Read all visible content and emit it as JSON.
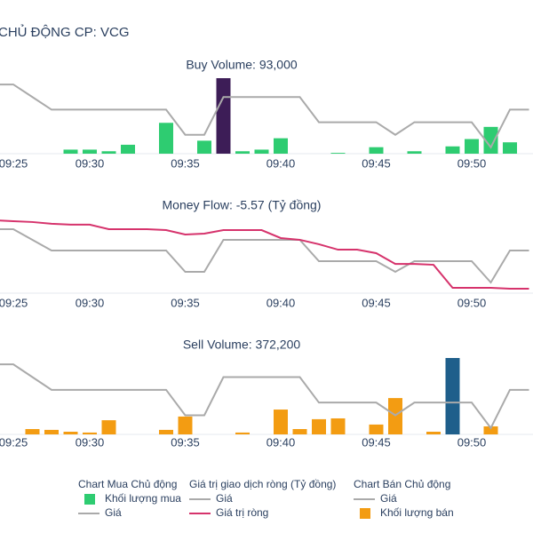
{
  "header": {
    "title": "CHỦ ĐỘNG CP: VCG"
  },
  "chart_data": [
    {
      "type": "bar",
      "title": "Buy Volume: 93,000",
      "legend_title": "Chart Mua Chủ động",
      "categories": [
        null,
        "09:25",
        null,
        null,
        null,
        "09:30",
        null,
        null,
        null,
        null,
        "09:35",
        null,
        null,
        null,
        null,
        "09:40",
        null,
        null,
        null,
        null,
        "09:45",
        null,
        null,
        null,
        null,
        "09:50",
        null,
        null,
        null
      ],
      "ylim": [
        0,
        93000
      ],
      "y2lim": [
        17.35,
        17.95
      ],
      "series": [
        {
          "name": "Khối lượng mua",
          "type": "bar",
          "color": "#2ecc71",
          "highlight_color": "#3d1d57",
          "values": [
            null,
            null,
            null,
            null,
            5000,
            5000,
            3000,
            11000,
            null,
            38000,
            null,
            16000,
            93000,
            3000,
            5000,
            19000,
            null,
            null,
            1000,
            null,
            8000,
            null,
            3000,
            null,
            9000,
            18000,
            33000,
            14000,
            null
          ]
        },
        {
          "name": "Giá",
          "type": "line",
          "axis": "y2",
          "color": "#aaaaaa",
          "values": [
            17.9,
            17.9,
            17.8,
            17.7,
            17.7,
            17.7,
            17.7,
            17.7,
            17.7,
            17.7,
            17.5,
            17.5,
            17.8,
            17.8,
            17.8,
            17.8,
            17.8,
            17.6,
            17.6,
            17.6,
            17.6,
            17.5,
            17.6,
            17.6,
            17.6,
            17.6,
            17.4,
            17.7,
            17.7
          ]
        }
      ]
    },
    {
      "type": "line",
      "title": "Money Flow: -5.57 (Tỷ đồng)",
      "legend_title": "Giá trị giao dịch ròng (Tỷ đồng)",
      "categories": [
        null,
        "09:25",
        null,
        null,
        null,
        "09:30",
        null,
        null,
        null,
        null,
        "09:35",
        null,
        null,
        null,
        null,
        "09:40",
        null,
        null,
        null,
        null,
        "09:45",
        null,
        null,
        null,
        null,
        "09:50",
        null,
        null,
        null
      ],
      "ylim": [
        -5.92,
        0.42
      ],
      "y2lim": [
        17.3,
        18.05
      ],
      "series": [
        {
          "name": "Giá",
          "type": "line",
          "axis": "y2",
          "color": "#aaaaaa",
          "values": [
            17.9,
            17.9,
            17.8,
            17.7,
            17.7,
            17.7,
            17.7,
            17.7,
            17.7,
            17.7,
            17.5,
            17.5,
            17.8,
            17.8,
            17.8,
            17.8,
            17.8,
            17.6,
            17.6,
            17.6,
            17.6,
            17.5,
            17.6,
            17.6,
            17.6,
            17.6,
            17.4,
            17.7,
            17.7
          ]
        },
        {
          "name": "Giá trị ròng",
          "type": "line",
          "color": "#d6336c",
          "values": [
            -0.14,
            -0.21,
            -0.28,
            -0.42,
            -0.49,
            -0.49,
            -0.85,
            -0.85,
            -0.85,
            -0.92,
            -1.27,
            -1.2,
            -0.92,
            -0.92,
            -0.92,
            -1.55,
            -1.69,
            -2.04,
            -2.47,
            -2.47,
            -2.75,
            -3.6,
            -3.6,
            -3.67,
            -5.5,
            -5.5,
            -5.5,
            -5.57,
            -5.57
          ]
        }
      ]
    },
    {
      "type": "bar",
      "title": "Sell Volume: 372,200",
      "legend_title": "Chart Bán Chủ động",
      "categories": [
        null,
        "09:25",
        null,
        null,
        null,
        "09:30",
        null,
        null,
        null,
        null,
        "09:35",
        null,
        null,
        null,
        null,
        "09:40",
        null,
        null,
        null,
        null,
        "09:45",
        null,
        null,
        null,
        null,
        "09:50",
        null,
        null,
        null
      ],
      "ylim": [
        0,
        372200
      ],
      "y2lim": [
        17.35,
        17.95
      ],
      "series": [
        {
          "name": "Giá",
          "type": "line",
          "axis": "y2",
          "color": "#aaaaaa",
          "values": [
            17.9,
            17.9,
            17.8,
            17.7,
            17.7,
            17.7,
            17.7,
            17.7,
            17.7,
            17.7,
            17.5,
            17.5,
            17.8,
            17.8,
            17.8,
            17.8,
            17.8,
            17.6,
            17.6,
            17.6,
            17.6,
            17.5,
            17.6,
            17.6,
            17.6,
            17.6,
            17.4,
            17.7,
            17.7
          ]
        },
        {
          "name": "Khối lượng bán",
          "type": "bar",
          "color": "#f39c12",
          "highlight_color": "#1f5f8b",
          "values": [
            null,
            null,
            26000,
            22000,
            13000,
            9000,
            69000,
            null,
            null,
            22000,
            87000,
            null,
            null,
            9000,
            null,
            121000,
            26000,
            74000,
            78000,
            null,
            48000,
            177000,
            null,
            13000,
            372200,
            null,
            39000,
            null,
            null
          ]
        }
      ]
    }
  ]
}
